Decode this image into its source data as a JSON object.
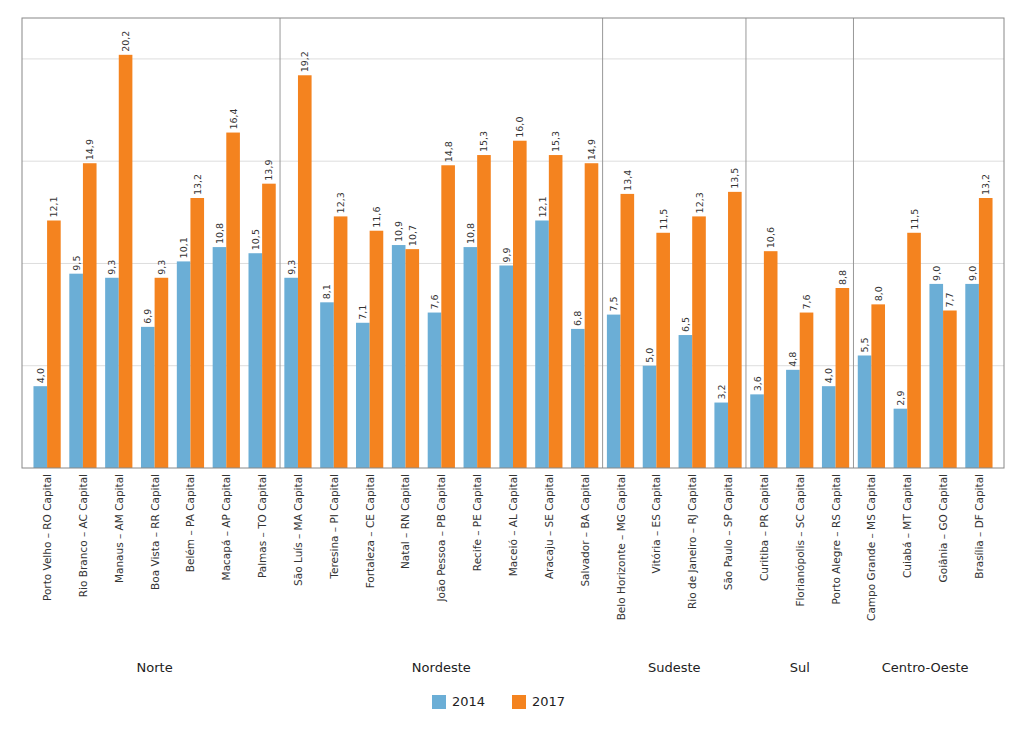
{
  "chart_data": {
    "type": "bar",
    "categories": [
      "Porto Velho – RO Capital",
      "Rio Branco – AC Capital",
      "Manaus – AM Capital",
      "Boa Vista – RR Capital",
      "Belém – PA Capital",
      "Macapá – AP Capital",
      "Palmas – TO Capital",
      "São Luís – MA Capital",
      "Teresina – PI Capital",
      "Fortaleza – CE Capital",
      "Natal – RN Capital",
      "João Pessoa – PB Capital",
      "Recife – PE Capital",
      "Maceió – AL Capital",
      "Aracaju – SE Capital",
      "Salvador – BA Capital",
      "Belo Horizonte – MG Capital",
      "Vitória – ES Capital",
      "Rio de Janeiro – RJ Capital",
      "São Paulo – SP Capital",
      "Curitiba – PR Capital",
      "Florianópolis – SC Capital",
      "Porto Alegre – RS Capital",
      "Campo Grande – MS Capital",
      "Cuiabá – MT Capital",
      "Goiânia – GO Capital",
      "Brasília – DF Capital"
    ],
    "series": [
      {
        "name": "2014",
        "color": "#6BAED6",
        "values": [
          4.0,
          9.5,
          9.3,
          6.9,
          10.1,
          10.8,
          10.5,
          9.3,
          8.1,
          7.1,
          10.9,
          7.6,
          10.8,
          9.9,
          12.1,
          6.8,
          7.5,
          5.0,
          6.5,
          3.2,
          3.6,
          4.8,
          4.0,
          5.5,
          2.9,
          9.0,
          9.0
        ],
        "value_labels": [
          "4,0",
          "9,5",
          "9,3",
          "6,9",
          "10,1",
          "10,8",
          "10,5",
          "9,3",
          "8,1",
          "7,1",
          "10,9",
          "7,6",
          "10,8",
          "9,9",
          "12,1",
          "6,8",
          "7,5",
          "5,0",
          "6,5",
          "3,2",
          "3,6",
          "4,8",
          "4,0",
          "5,5",
          "2,9",
          "9,0",
          "9,0"
        ]
      },
      {
        "name": "2017",
        "color": "#F4831F",
        "values": [
          12.1,
          14.9,
          20.2,
          9.3,
          13.2,
          16.4,
          13.9,
          19.2,
          12.3,
          11.6,
          10.7,
          14.8,
          15.3,
          16.0,
          15.3,
          14.9,
          13.4,
          11.5,
          12.3,
          13.5,
          10.6,
          7.6,
          8.8,
          8.0,
          11.5,
          7.7,
          13.2
        ],
        "value_labels": [
          "12,1",
          "14,9",
          "20,2",
          "9,3",
          "13,2",
          "16,4",
          "13,9",
          "19,2",
          "12,3",
          "11,6",
          "10,7",
          "14,8",
          "15,3",
          "16,0",
          "15,3",
          "14,9",
          "13,4",
          "11,5",
          "12,3",
          "13,5",
          "10,6",
          "7,6",
          "8,8",
          "8,0",
          "11,5",
          "7,7",
          "13,2"
        ]
      }
    ],
    "annotations": [
      {
        "text": "Norte",
        "from": "Porto Velho – RO Capital",
        "to": "Palmas – TO Capital"
      },
      {
        "text": "Nordeste",
        "from": "São Luís – MA Capital",
        "to": "Salvador – BA Capital"
      },
      {
        "text": "Sudeste",
        "from": "Belo Horizonte – MG Capital",
        "to": "São Paulo – SP Capital"
      },
      {
        "text": "Sul",
        "from": "Curitiba – PR Capital",
        "to": "Porto Alegre – RS Capital"
      },
      {
        "text": "Centro-Oeste",
        "from": "Campo Grande – MS Capital",
        "to": "Brasília – DF Capital"
      }
    ],
    "ylim": [
      0,
      22
    ],
    "yticks": [
      5,
      10,
      15,
      20
    ],
    "grid": true,
    "tick_labels": "x",
    "data_labels": true,
    "legend": "bottom"
  }
}
